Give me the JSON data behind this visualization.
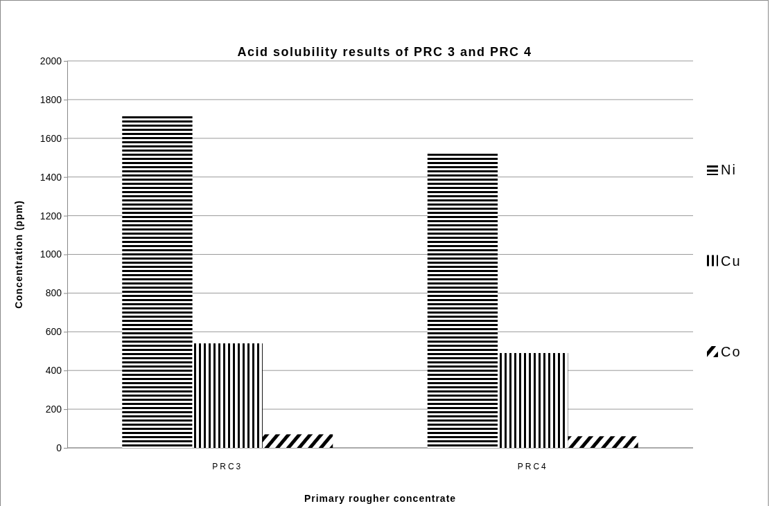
{
  "chart_data": {
    "type": "bar",
    "title": "Acid solubility results of PRC 3 and PRC 4",
    "xlabel": "Primary rougher concentrate",
    "ylabel": "Concentration (ppm)",
    "categories": [
      "PRC3",
      "PRC4"
    ],
    "series": [
      {
        "name": "Ni",
        "color": "#000000",
        "values": [
          1720,
          1520
        ]
      },
      {
        "name": "Cu",
        "color": "#000000",
        "values": [
          540,
          490
        ]
      },
      {
        "name": "Co",
        "color": "#000000",
        "values": [
          70,
          60
        ]
      }
    ],
    "ylim": [
      0,
      2000
    ],
    "yticks": [
      0,
      200,
      400,
      600,
      800,
      1000,
      1200,
      1400,
      1600,
      1800,
      2000
    ],
    "grid": "y",
    "legend": "right"
  }
}
